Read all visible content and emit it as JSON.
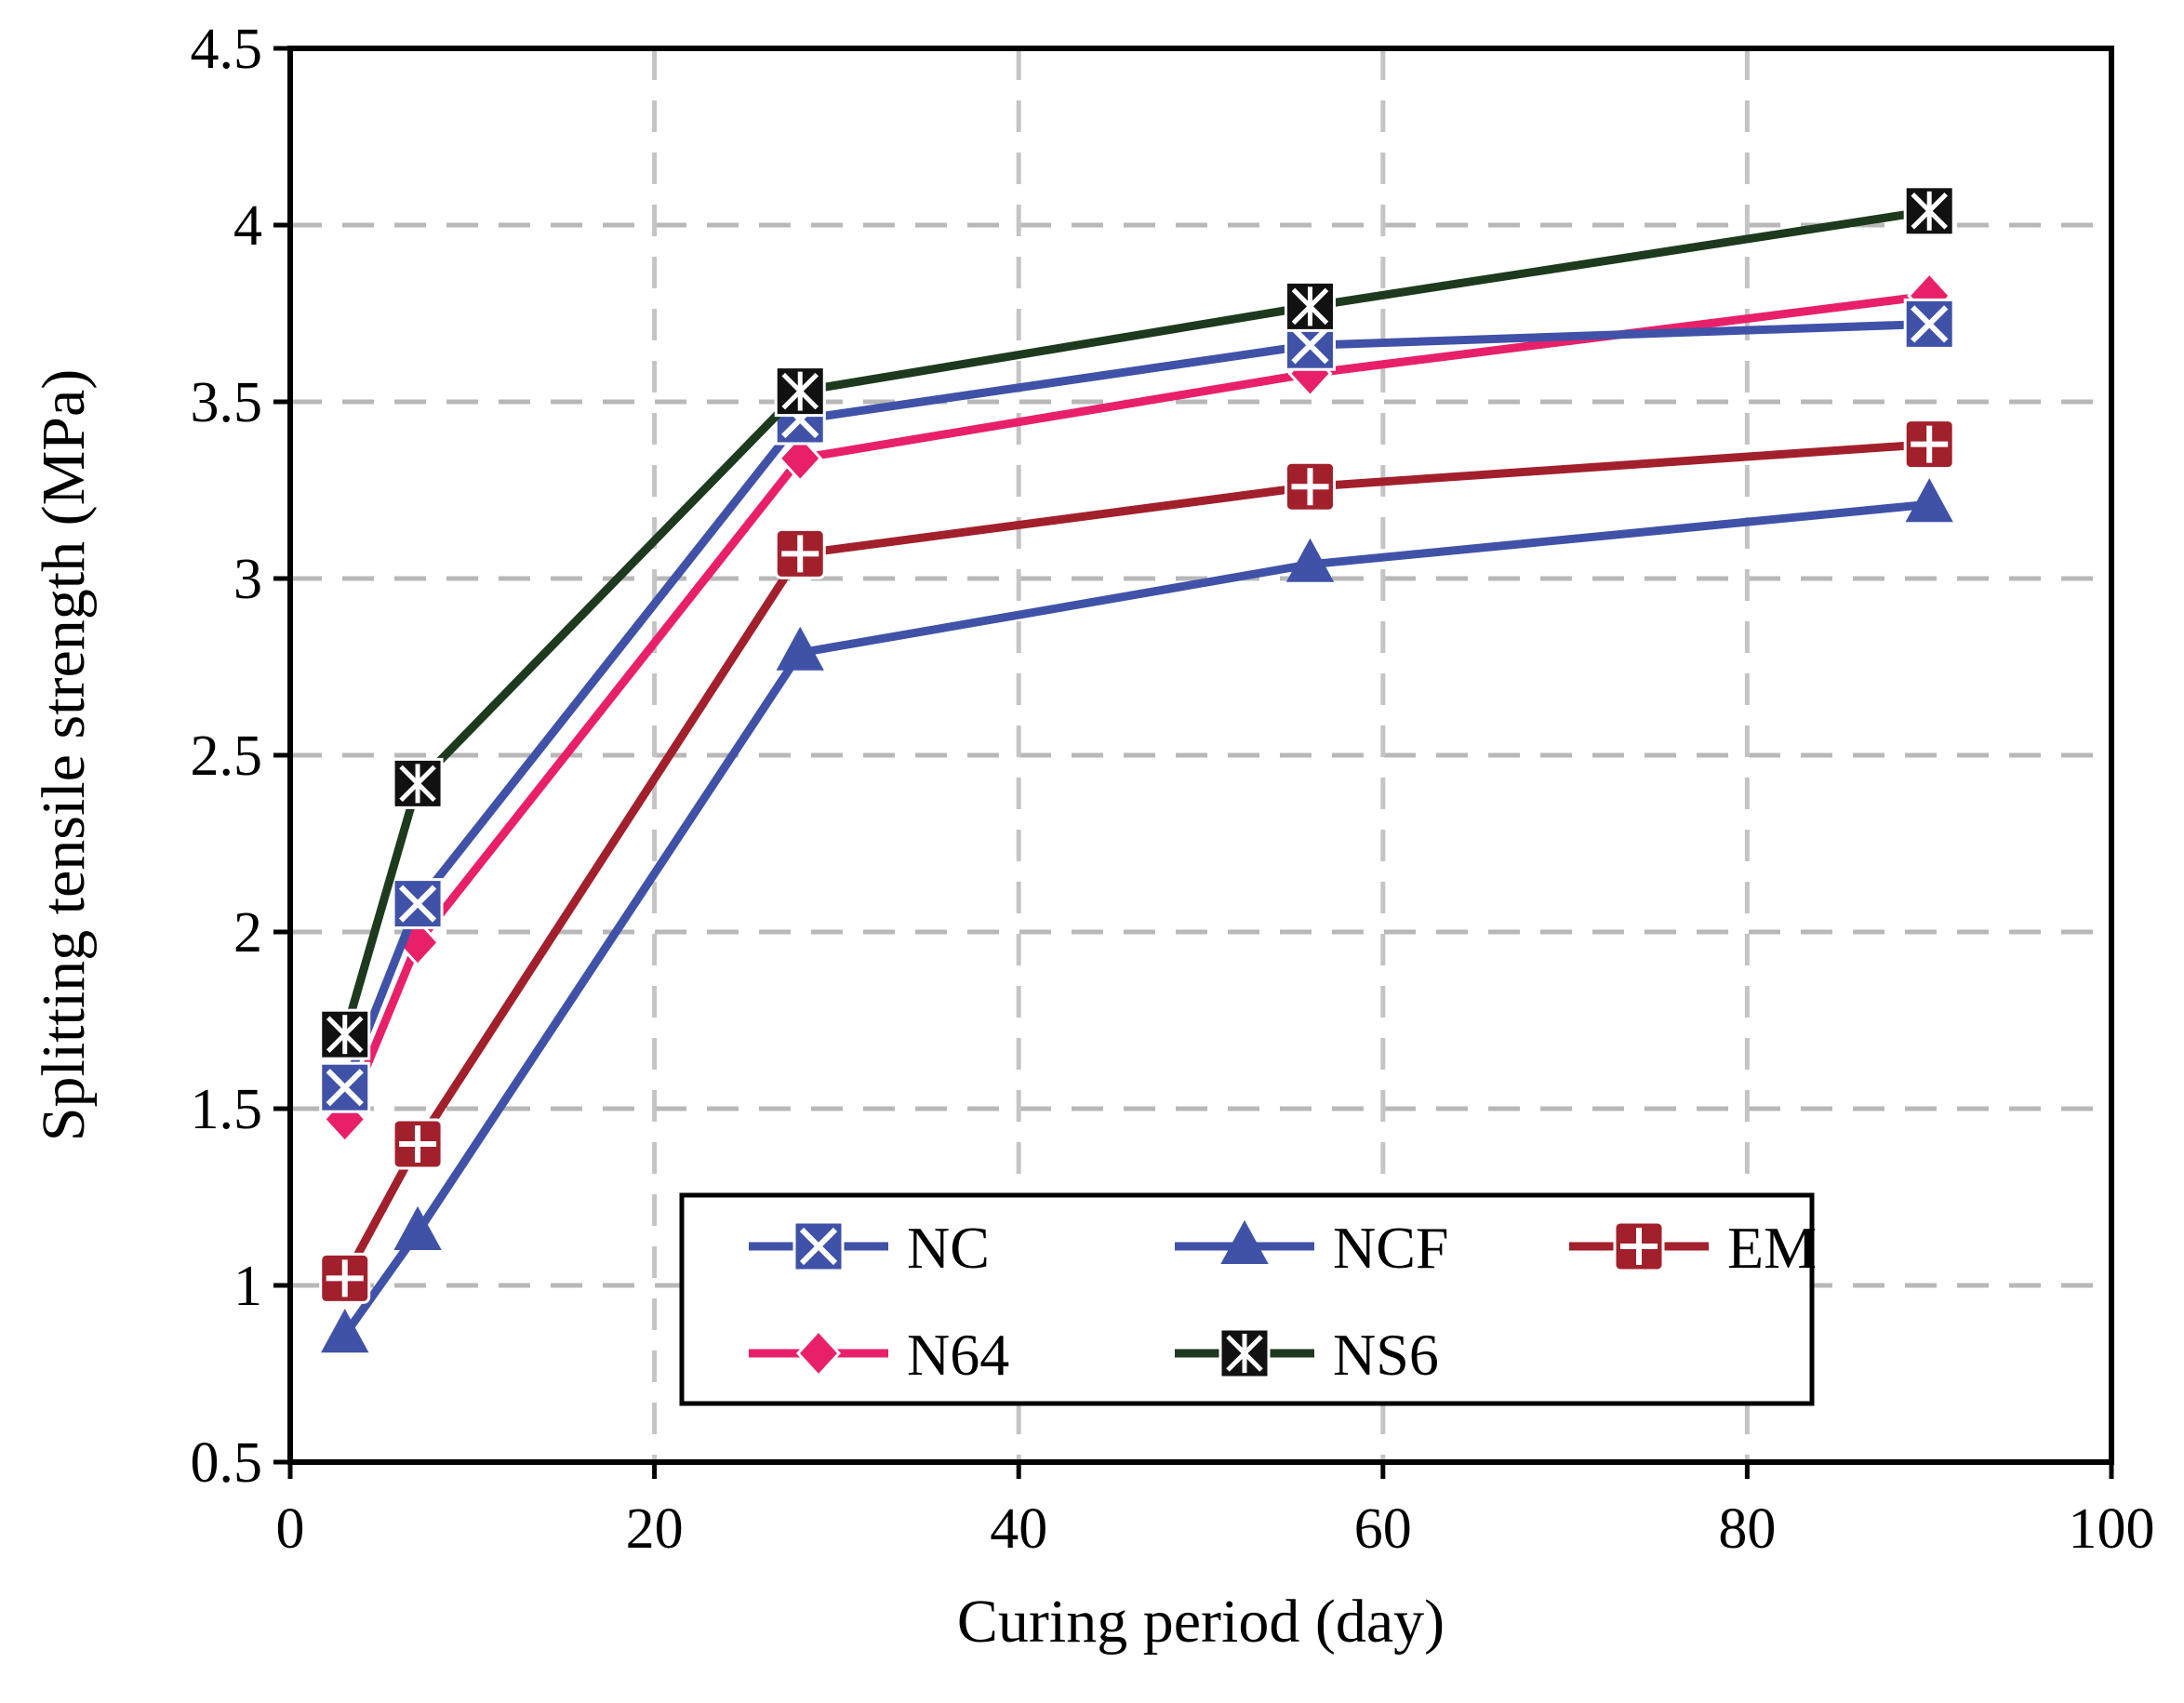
{
  "chart_data": {
    "type": "line",
    "title": "",
    "xlabel": "Curing period (day)",
    "ylabel": "Splitting tensile strength (MPa)",
    "xlim": [
      0,
      100
    ],
    "ylim": [
      0.5,
      4.5
    ],
    "x_ticks": [
      0,
      20,
      40,
      60,
      80,
      100
    ],
    "y_ticks": [
      0.5,
      1,
      1.5,
      2,
      2.5,
      3,
      3.5,
      4,
      4.5
    ],
    "x_tick_labels": [
      "0",
      "20",
      "40",
      "60",
      "80",
      "100"
    ],
    "y_tick_labels": [
      "0.5",
      "1",
      "1.5",
      "2",
      "2.5",
      "3",
      "3.5",
      "4",
      "4.5"
    ],
    "grid": "dashed",
    "legend_position": "bottom-right",
    "x": [
      3,
      7,
      28,
      56,
      90
    ],
    "series": [
      {
        "name": "NC",
        "color": "#4052A8",
        "marker": "x-square",
        "values": [
          1.56,
          2.08,
          3.45,
          3.66,
          3.72
        ]
      },
      {
        "name": "NCF",
        "color": "#4052A8",
        "marker": "triangle",
        "values": [
          0.86,
          1.15,
          2.79,
          3.04,
          3.21
        ]
      },
      {
        "name": "EM",
        "color": "#A2202C",
        "marker": "plus-square",
        "values": [
          1.02,
          1.4,
          3.07,
          3.26,
          3.38
        ]
      },
      {
        "name": "N64",
        "color": "#E8206A",
        "marker": "diamond",
        "values": [
          1.47,
          1.97,
          3.34,
          3.58,
          3.8
        ]
      },
      {
        "name": "NS6",
        "color": "#1E3A1E",
        "marker": "asterisk-square",
        "values": [
          1.71,
          2.42,
          3.53,
          3.77,
          4.04
        ]
      }
    ]
  }
}
